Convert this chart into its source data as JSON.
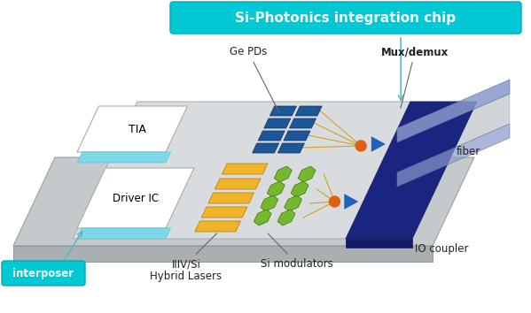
{
  "title": "Si-Photonics integration chip",
  "labels": {
    "ge_pds": "Ge PDs",
    "mux_demux": "Mux/demux",
    "tia": "TIA",
    "driver_ic": "Driver IC",
    "fiber": "fiber",
    "io_coupler": "IO coupler",
    "si_modulators": "Si modulators",
    "hybrid_lasers_1": "IIIV/Si",
    "hybrid_lasers_2": "Hybrid Lasers",
    "interposer": "interposer"
  },
  "colors": {
    "title_bg": "#00c8d4",
    "title_text": "white",
    "interposer_top": "#c4cacc",
    "interposer_side": "#aab0b2",
    "chip_surface": "#d8dcde",
    "blue_bar_top": "#1a2580",
    "blue_bar_side": "#141c68",
    "tia_white": "white",
    "tia_cyan": "#7dd8e8",
    "driver_white": "white",
    "driver_cyan": "#7dd8e8",
    "ge_pd_blue": "#1e5799",
    "yellow_bar": "#f0b429",
    "green_hex": "#74b830",
    "orange_dot": "#e06010",
    "tri_blue": "#2060c0",
    "fiber_color": "#8898c8",
    "wire_color": "#d4a020",
    "arrow_cyan": "#50b8c8",
    "label_gray": "#444444",
    "interp_label_bg": "#00c8d4"
  }
}
